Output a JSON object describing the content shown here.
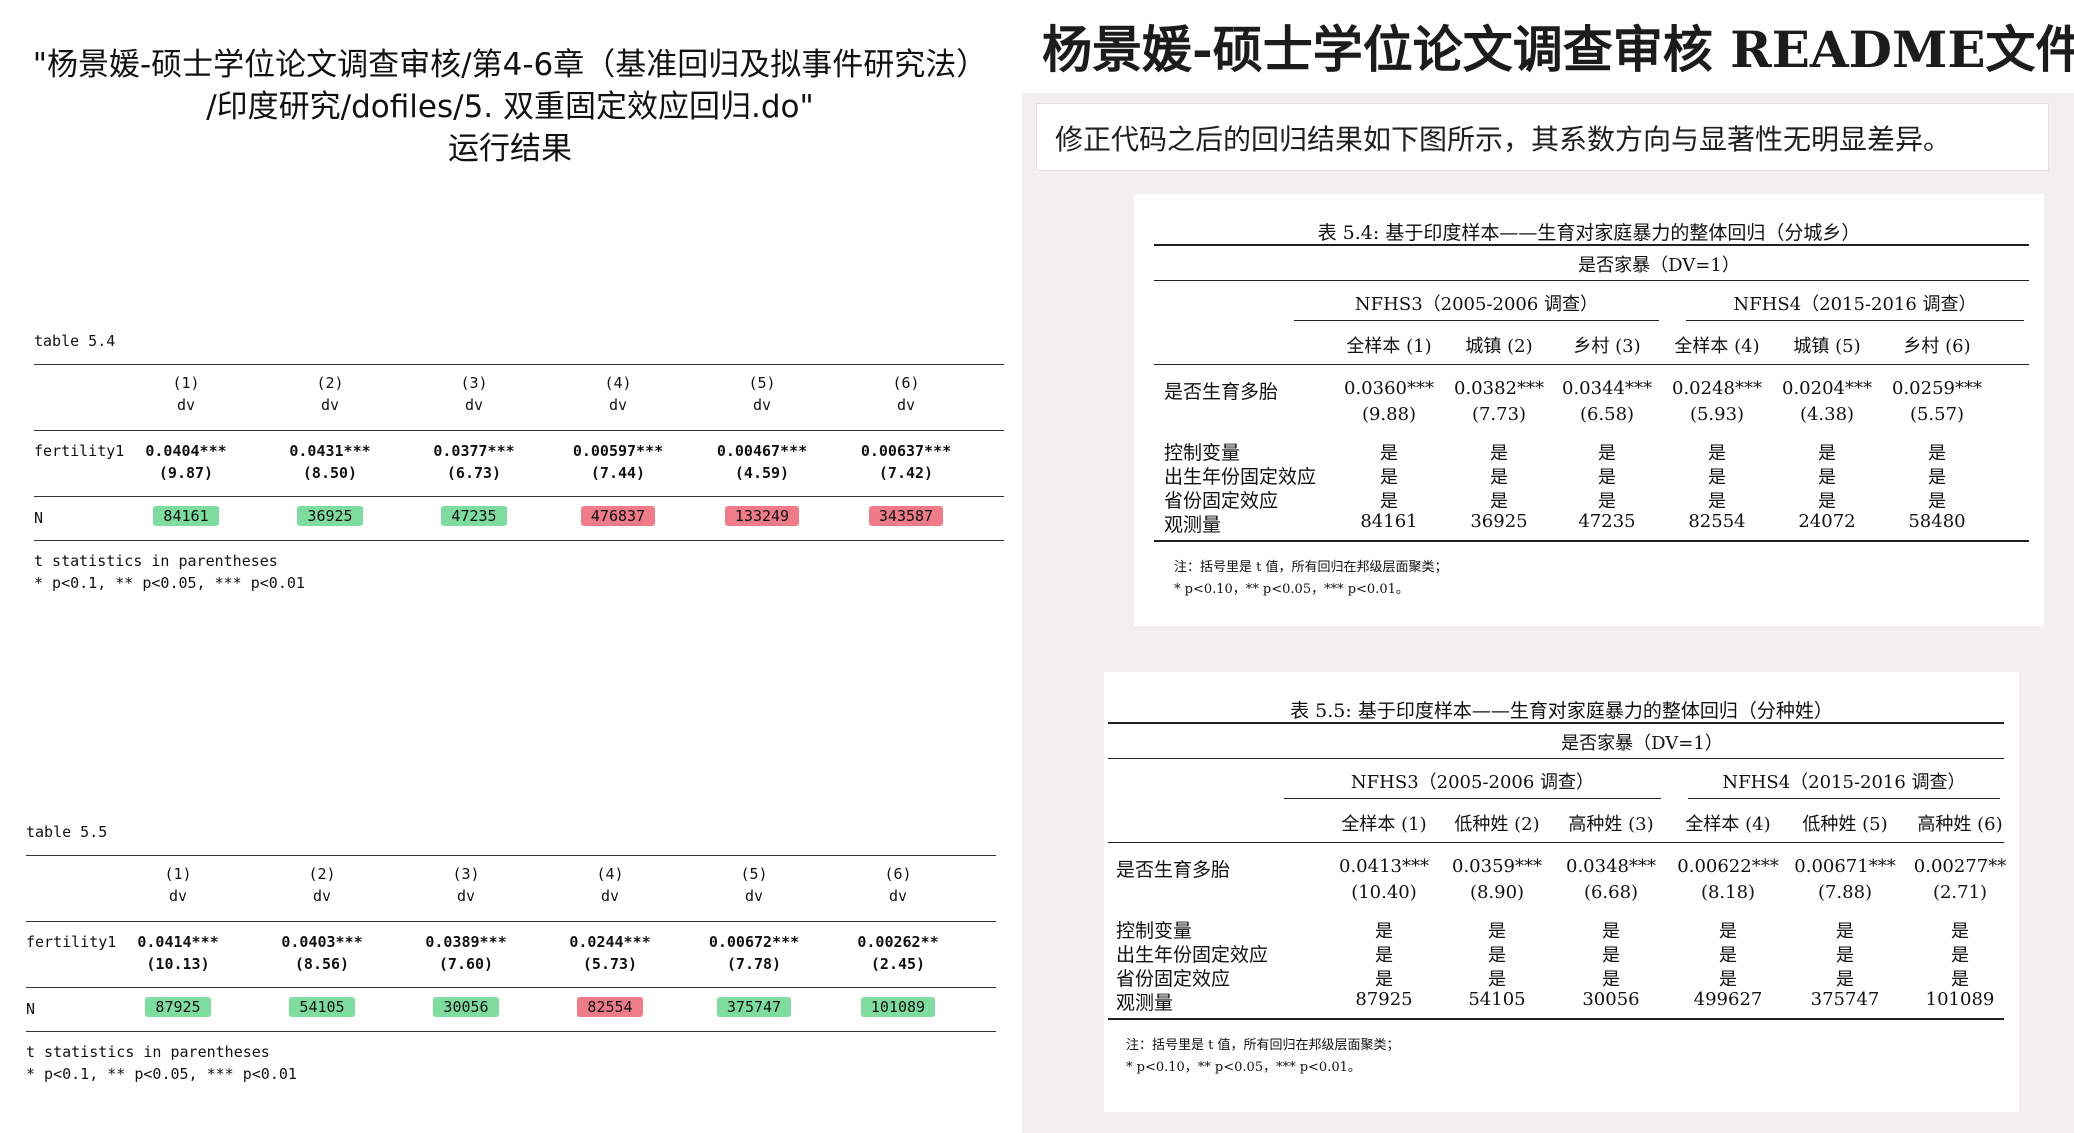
{
  "left": {
    "title_lines": [
      "\"杨景媛-硕士学位论文调查审核/第4-6章（基准回归及拟事件研究法）",
      "/印度研究/dofiles/5. 双重固定效应回归.do\"",
      "运行结果"
    ],
    "tables": [
      {
        "label": "table 5.4",
        "col_nums": [
          "(1)",
          "(2)",
          "(3)",
          "(4)",
          "(5)",
          "(6)"
        ],
        "col_dv": [
          "dv",
          "dv",
          "dv",
          "dv",
          "dv",
          "dv"
        ],
        "row_label": "fertility1",
        "coefs": [
          "0.0404***",
          "0.0431***",
          "0.0377***",
          "0.00597***",
          "0.00467***",
          "0.00637***"
        ],
        "tstats": [
          "(9.87)",
          "(8.50)",
          "(6.73)",
          "(7.44)",
          "(4.59)",
          "(7.42)"
        ],
        "n_label": "N",
        "n_values": [
          "84161",
          "36925",
          "47235",
          "476837",
          "133249",
          "343587"
        ],
        "n_highlight": [
          "#7ddc9e",
          "#7ddc9e",
          "#7ddc9e",
          "#ee7b88",
          "#ee7b88",
          "#ee7b88"
        ],
        "notes": [
          "t statistics in parentheses",
          "* p<0.1, ** p<0.05, *** p<0.01"
        ]
      },
      {
        "label": "table 5.5",
        "col_nums": [
          "(1)",
          "(2)",
          "(3)",
          "(4)",
          "(5)",
          "(6)"
        ],
        "col_dv": [
          "dv",
          "dv",
          "dv",
          "dv",
          "dv",
          "dv"
        ],
        "row_label": "fertility1",
        "coefs": [
          "0.0414***",
          "0.0403***",
          "0.0389***",
          "0.0244***",
          "0.00672***",
          "0.00262**"
        ],
        "tstats": [
          "(10.13)",
          "(8.56)",
          "(7.60)",
          "(5.73)",
          "(7.78)",
          "(2.45)"
        ],
        "n_label": "N",
        "n_values": [
          "87925",
          "54105",
          "30056",
          "82554",
          "375747",
          "101089"
        ],
        "n_highlight": [
          "#7ddc9e",
          "#7ddc9e",
          "#7ddc9e",
          "#ee7b88",
          "#7ddc9e",
          "#7ddc9e"
        ],
        "notes": [
          "t statistics in parentheses",
          "* p<0.1, ** p<0.05, *** p<0.01"
        ]
      }
    ]
  },
  "right": {
    "readme_title": "杨景媛-硕士学位论文调查审核 README文件",
    "readme_note": "修正代码之后的回归结果如下图所示，其系数方向与显著性无明显差异。",
    "tables": [
      {
        "caption": "表 5.4: 基于印度样本——生育对家庭暴力的整体回归（分城乡）",
        "dv_label": "是否家暴（DV=1）",
        "groups": [
          "NFHS3（2005-2006 调查）",
          "NFHS4（2015-2016 调查）"
        ],
        "col_heads": [
          "全样本 (1)",
          "城镇 (2)",
          "乡村 (3)",
          "全样本 (4)",
          "城镇 (5)",
          "乡村 (6)"
        ],
        "row_label": "是否生育多胎",
        "coefs": [
          "0.0360***",
          "0.0382***",
          "0.0344***",
          "0.0248***",
          "0.0204***",
          "0.0259***"
        ],
        "tstats": [
          "(9.88)",
          "(7.73)",
          "(6.58)",
          "(5.93)",
          "(4.38)",
          "(5.57)"
        ],
        "yes_rows": [
          {
            "label": "控制变量",
            "values": [
              "是",
              "是",
              "是",
              "是",
              "是",
              "是"
            ]
          },
          {
            "label": "出生年份固定效应",
            "values": [
              "是",
              "是",
              "是",
              "是",
              "是",
              "是"
            ]
          },
          {
            "label": "省份固定效应",
            "values": [
              "是",
              "是",
              "是",
              "是",
              "是",
              "是"
            ]
          }
        ],
        "obs_label": "观测量",
        "obs": [
          "84161",
          "36925",
          "47235",
          "82554",
          "24072",
          "58480"
        ],
        "notes": [
          "注：括号里是 t 值，所有回归在邦级层面聚类；",
          "* p<0.10，** p<0.05，*** p<0.01。"
        ]
      },
      {
        "caption": "表 5.5: 基于印度样本——生育对家庭暴力的整体回归（分种姓）",
        "dv_label": "是否家暴（DV=1）",
        "groups": [
          "NFHS3（2005-2006 调查）",
          "NFHS4（2015-2016 调查）"
        ],
        "col_heads": [
          "全样本 (1)",
          "低种姓 (2)",
          "高种姓 (3)",
          "全样本 (4)",
          "低种姓 (5)",
          "高种姓 (6)"
        ],
        "row_label": "是否生育多胎",
        "coefs": [
          "0.0413***",
          "0.0359***",
          "0.0348***",
          "0.00622***",
          "0.00671***",
          "0.00277**"
        ],
        "tstats": [
          "(10.40)",
          "(8.90)",
          "(6.68)",
          "(8.18)",
          "(7.88)",
          "(2.71)"
        ],
        "yes_rows": [
          {
            "label": "控制变量",
            "values": [
              "是",
              "是",
              "是",
              "是",
              "是",
              "是"
            ]
          },
          {
            "label": "出生年份固定效应",
            "values": [
              "是",
              "是",
              "是",
              "是",
              "是",
              "是"
            ]
          },
          {
            "label": "省份固定效应",
            "values": [
              "是",
              "是",
              "是",
              "是",
              "是",
              "是"
            ]
          }
        ],
        "obs_label": "观测量",
        "obs": [
          "87925",
          "54105",
          "30056",
          "499627",
          "375747",
          "101089"
        ],
        "notes": [
          "注：括号里是 t 值，所有回归在邦级层面聚类；",
          "* p<0.10，** p<0.05，*** p<0.01。"
        ]
      }
    ]
  }
}
